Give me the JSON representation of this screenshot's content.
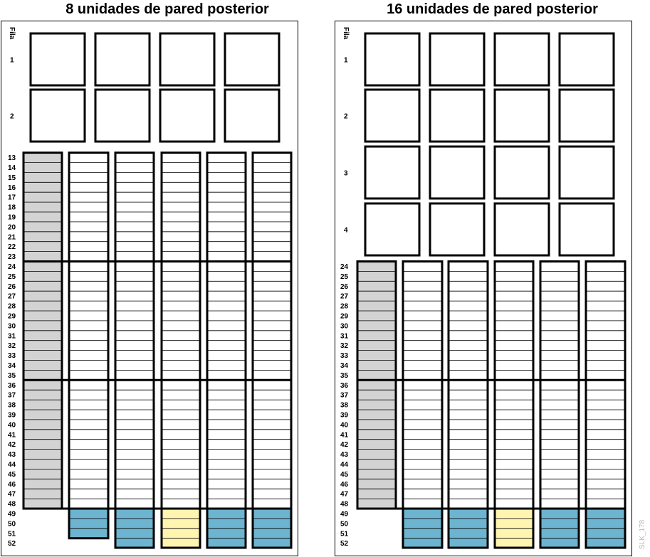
{
  "panels": [
    {
      "title": "8 unidades de pared posterior",
      "row_header": "Fila",
      "wall_rows": [
        "1",
        "2"
      ],
      "column_rows": [
        "13",
        "14",
        "15",
        "16",
        "17",
        "18",
        "19",
        "20",
        "21",
        "22",
        "23",
        "24",
        "25",
        "26",
        "27",
        "28",
        "29",
        "30",
        "31",
        "32",
        "33",
        "34",
        "35",
        "36",
        "37",
        "38",
        "39",
        "40",
        "41",
        "42",
        "43",
        "44",
        "45",
        "46",
        "47",
        "48",
        "49",
        "50",
        "51",
        "52"
      ]
    },
    {
      "title": "16 unidades de pared posterior",
      "row_header": "Fila",
      "wall_rows": [
        "1",
        "2",
        "3",
        "4"
      ],
      "column_rows": [
        "24",
        "25",
        "26",
        "27",
        "28",
        "29",
        "30",
        "31",
        "32",
        "33",
        "34",
        "35",
        "36",
        "37",
        "38",
        "39",
        "40",
        "41",
        "42",
        "43",
        "44",
        "45",
        "46",
        "47",
        "48",
        "49",
        "50",
        "51",
        "52"
      ]
    }
  ],
  "colors": {
    "outline": "#000000",
    "gray_column": "#d3d3d3",
    "blue_slots": "#6cb4cf",
    "yellow_slots": "#fff4b0",
    "slot_lines": "#000000"
  },
  "watermark": "SLK_178"
}
